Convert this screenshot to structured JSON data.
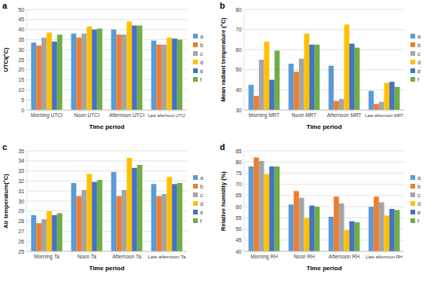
{
  "chart_data": [
    {
      "type": "bar",
      "title": "a",
      "y_label": "UTCI(°C)",
      "x_label": "Time period",
      "categories": [
        "Morning UTCI",
        "Noon UTCI",
        "Afternoon UTCI",
        "Late afternoon UTCI"
      ],
      "ylim": [
        0,
        50
      ],
      "yticks": [
        0,
        5,
        10,
        15,
        20,
        25,
        30,
        35,
        40,
        45,
        50
      ],
      "grid": true,
      "legend": "right",
      "series": [
        {
          "name": "a",
          "color": "#5b9bd5",
          "values": [
            33.5,
            38,
            40,
            34.5
          ]
        },
        {
          "name": "b",
          "color": "#ed7d31",
          "values": [
            32,
            36,
            37.5,
            32.5
          ]
        },
        {
          "name": "c",
          "color": "#a5a5a5",
          "values": [
            36,
            38,
            37.5,
            32.5
          ]
        },
        {
          "name": "d",
          "color": "#ffc000",
          "values": [
            38.5,
            41.5,
            44,
            36
          ]
        },
        {
          "name": "e",
          "color": "#4472c4",
          "values": [
            34,
            40,
            42,
            35.5
          ]
        },
        {
          "name": "f",
          "color": "#70ad47",
          "values": [
            37.5,
            40.5,
            42,
            35
          ]
        }
      ]
    },
    {
      "type": "bar",
      "title": "b",
      "y_label": "Mean radiant temperature (°C)",
      "x_label": "Time period",
      "categories": [
        "Morning MRT",
        "Noon MRT",
        "Afternoon MRT",
        "Late afternoon MRT"
      ],
      "ylim": [
        30,
        80
      ],
      "yticks": [
        30,
        40,
        50,
        60,
        70,
        80
      ],
      "grid": true,
      "legend": "right",
      "series": [
        {
          "name": "a",
          "color": "#5b9bd5",
          "values": [
            42.5,
            53,
            52,
            39.5
          ]
        },
        {
          "name": "b",
          "color": "#ed7d31",
          "values": [
            37,
            49,
            34.5,
            33
          ]
        },
        {
          "name": "c",
          "color": "#a5a5a5",
          "values": [
            55,
            55.5,
            35.5,
            34
          ]
        },
        {
          "name": "d",
          "color": "#ffc000",
          "values": [
            64,
            68,
            72.5,
            43.5
          ]
        },
        {
          "name": "e",
          "color": "#4472c4",
          "values": [
            45,
            62.5,
            63,
            44
          ]
        },
        {
          "name": "f",
          "color": "#70ad47",
          "values": [
            59.5,
            62.5,
            61,
            41.5
          ]
        }
      ]
    },
    {
      "type": "bar",
      "title": "c",
      "y_label": "Air temperature(°C)",
      "x_label": "Time period",
      "categories": [
        "Morning Ta",
        "Noon Ta",
        "Afternoon Ta",
        "Late afternoon Ta"
      ],
      "ylim": [
        25,
        35
      ],
      "yticks": [
        25,
        26,
        27,
        28,
        29,
        30,
        31,
        32,
        33,
        34,
        35
      ],
      "grid": true,
      "legend": "right",
      "series": [
        {
          "name": "a",
          "color": "#5b9bd5",
          "values": [
            28.6,
            31.8,
            32.9,
            31.7
          ]
        },
        {
          "name": "b",
          "color": "#ed7d31",
          "values": [
            27.8,
            30.5,
            30.5,
            30.5
          ]
        },
        {
          "name": "c",
          "color": "#a5a5a5",
          "values": [
            28.2,
            31.1,
            31.1,
            30.7
          ]
        },
        {
          "name": "d",
          "color": "#ffc000",
          "values": [
            29.0,
            32.7,
            34.3,
            32.4
          ]
        },
        {
          "name": "e",
          "color": "#4472c4",
          "values": [
            28.6,
            31.9,
            33.3,
            31.7
          ]
        },
        {
          "name": "f",
          "color": "#70ad47",
          "values": [
            28.8,
            32.1,
            33.6,
            31.8
          ]
        }
      ]
    },
    {
      "type": "bar",
      "title": "d",
      "y_label": "Relative humidity (%)",
      "x_label": "Time period",
      "categories": [
        "Morning RH",
        "Noon RH",
        "Afternoon RH",
        "Late afternoon RH"
      ],
      "ylim": [
        40,
        85
      ],
      "yticks": [
        40,
        45,
        50,
        55,
        60,
        65,
        70,
        75,
        80,
        85
      ],
      "grid": true,
      "legend": "right",
      "series": [
        {
          "name": "a",
          "color": "#5b9bd5",
          "values": [
            78,
            61,
            55.5,
            60
          ]
        },
        {
          "name": "b",
          "color": "#ed7d31",
          "values": [
            82,
            67,
            64.5,
            64.5
          ]
        },
        {
          "name": "c",
          "color": "#a5a5a5",
          "values": [
            80.5,
            64,
            61.5,
            62
          ]
        },
        {
          "name": "d",
          "color": "#ffc000",
          "values": [
            74.5,
            55,
            49.5,
            56
          ]
        },
        {
          "name": "e",
          "color": "#4472c4",
          "values": [
            78,
            60.5,
            53.5,
            59
          ]
        },
        {
          "name": "f",
          "color": "#70ad47",
          "values": [
            78,
            60,
            53,
            58.5
          ]
        }
      ]
    }
  ]
}
